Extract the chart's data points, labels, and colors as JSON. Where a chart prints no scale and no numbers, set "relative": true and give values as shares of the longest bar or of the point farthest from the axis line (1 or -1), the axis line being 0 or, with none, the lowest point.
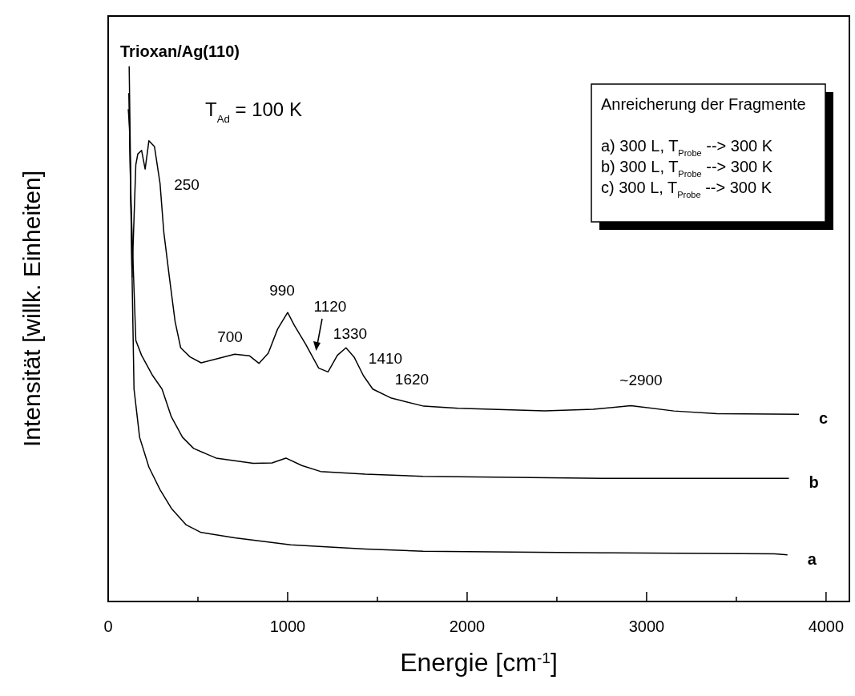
{
  "chart_data": {
    "type": "line",
    "title": "Trioxan/Ag(110)",
    "subtitle": "T$_{Ad}$ = 100 K",
    "xlabel": "Energie [cm$^{-1}$]",
    "ylabel": "Intensität [willk. Einheiten]",
    "relative": true,
    "xlim": [
      0,
      4130
    ],
    "xticks": [
      0,
      {
        "value": 500,
        "label": null
      },
      1000,
      {
        "value": 1500,
        "label": null
      },
      2000,
      {
        "value": 2500,
        "label": null
      },
      3000,
      {
        "value": 3500,
        "label": null
      },
      4000
    ],
    "series": [
      {
        "name": "a",
        "color": "#000000",
        "x": [
          112,
          119,
          144,
          175,
          227,
          289,
          352,
          435,
          518,
          705,
          1017,
          1432,
          1755,
          2751,
          3712,
          3785
        ],
        "values": [
          0.92,
          0.885,
          0.397,
          0.307,
          0.251,
          0.209,
          0.174,
          0.143,
          0.129,
          0.119,
          0.106,
          0.098,
          0.094,
          0.091,
          0.089,
          0.087
        ]
      },
      {
        "name": "b",
        "color": "#000000",
        "x": [
          115,
          127,
          154,
          186,
          248,
          300,
          352,
          414,
          476,
          601,
          809,
          913,
          990,
          1079,
          1183,
          1432,
          1755,
          2751,
          3793
        ],
        "values": [
          0.95,
          0.746,
          0.488,
          0.46,
          0.422,
          0.397,
          0.345,
          0.307,
          0.286,
          0.268,
          0.258,
          0.259,
          0.268,
          0.254,
          0.243,
          0.238,
          0.234,
          0.23,
          0.23
        ]
      },
      {
        "name": "c",
        "color": "#000000",
        "x": [
          117,
          133,
          154,
          165,
          186,
          206,
          227,
          258,
          289,
          310,
          341,
          373,
          404,
          456,
          518,
          601,
          705,
          788,
          840,
          892,
          944,
          1000,
          1037,
          1100,
          1173,
          1225,
          1277,
          1325,
          1370,
          1422,
          1474,
          1578,
          1758,
          1950,
          2431,
          2703,
          2912,
          3152,
          3392,
          3849
        ],
        "values": [
          1.0,
          0.606,
          0.816,
          0.836,
          0.843,
          0.808,
          0.861,
          0.85,
          0.781,
          0.69,
          0.606,
          0.523,
          0.474,
          0.457,
          0.446,
          0.453,
          0.462,
          0.459,
          0.445,
          0.464,
          0.509,
          0.54,
          0.516,
          0.481,
          0.436,
          0.429,
          0.46,
          0.474,
          0.457,
          0.422,
          0.397,
          0.38,
          0.365,
          0.361,
          0.356,
          0.359,
          0.366,
          0.356,
          0.351,
          0.35
        ]
      }
    ],
    "annotations": [
      "250",
      "700",
      "990",
      "1120",
      "1330",
      "1410",
      "1620",
      "~2900",
      "Anreicherung der Fragmente",
      "a) 300 L, T$_{Probe}$ --> 300 K",
      "b) 300 L, T$_{Probe}$ --> 300 K",
      "c) 300 L, T$_{Probe}$ --> 300 K"
    ]
  }
}
